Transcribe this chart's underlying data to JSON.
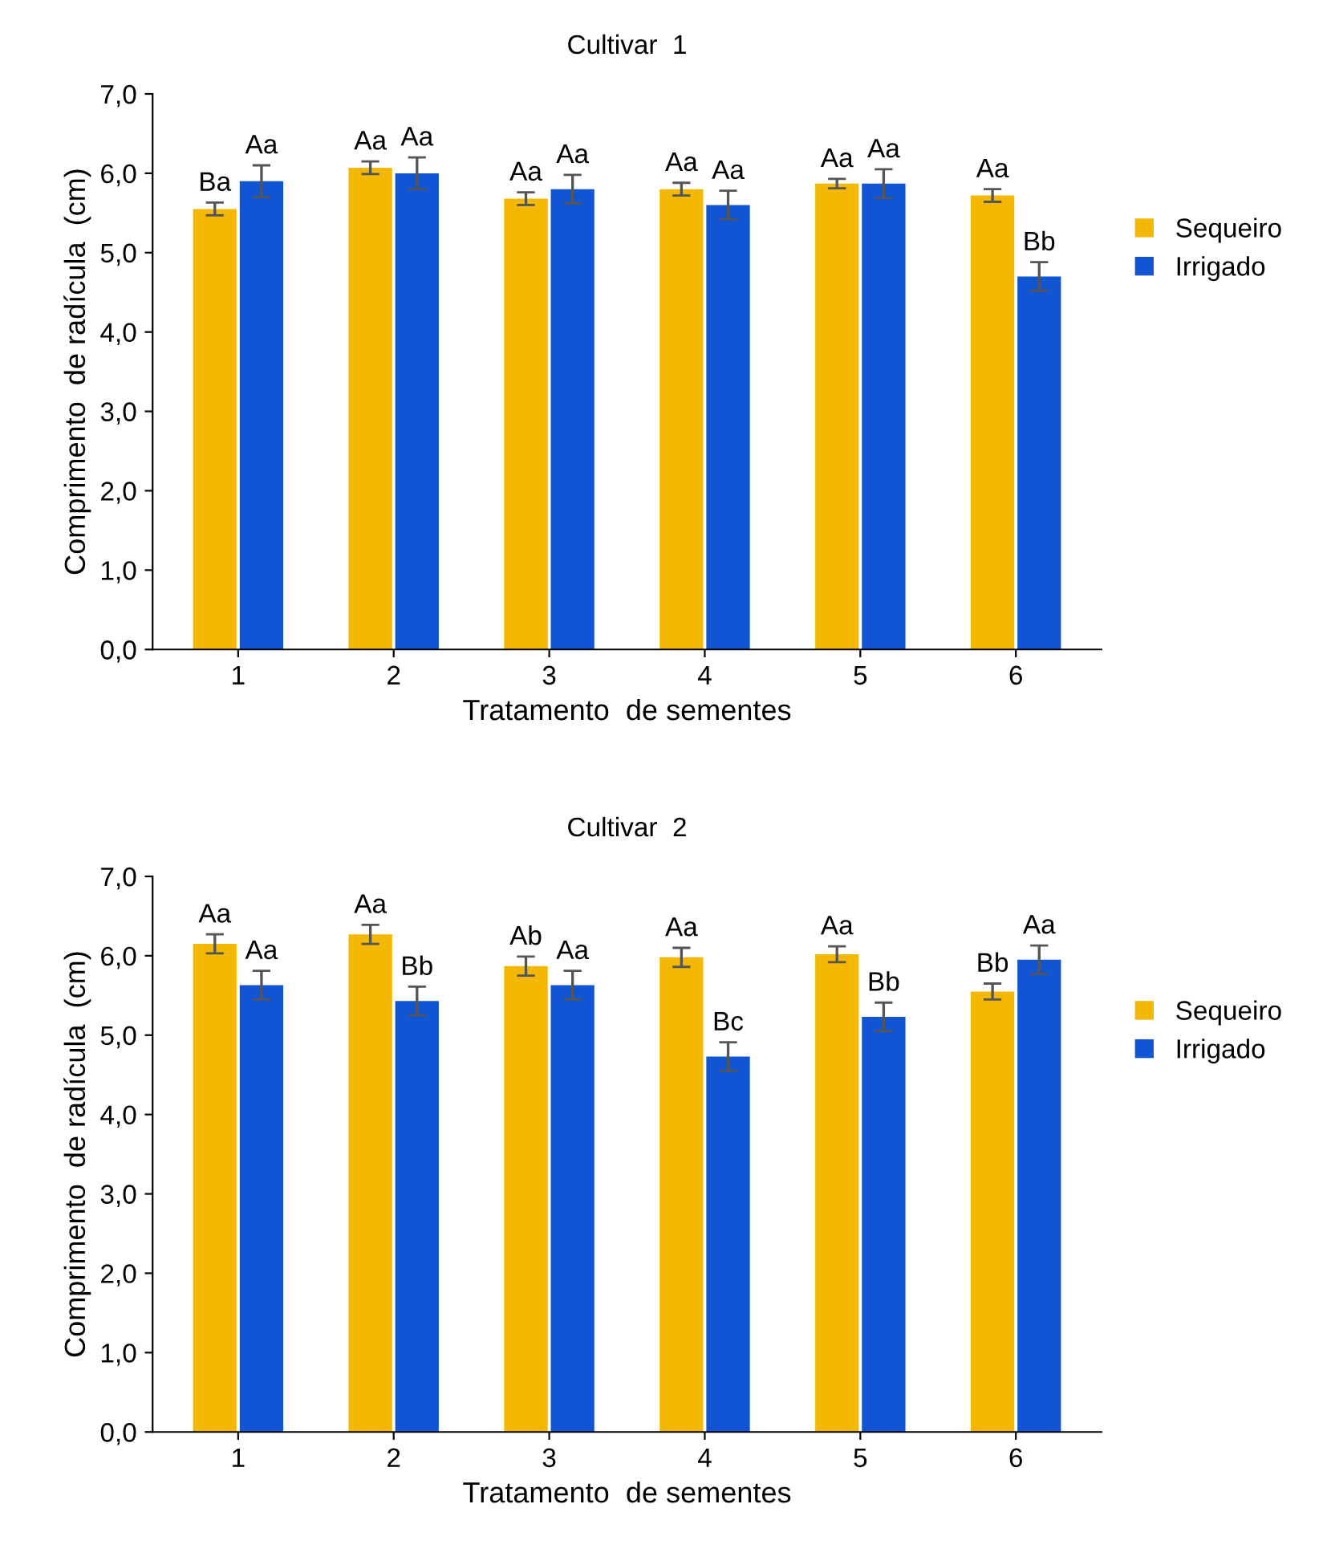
{
  "chart_data": [
    {
      "type": "bar",
      "title": "Cultivar  1",
      "xlabel": "Tratamento  de sementes",
      "ylabel": "Comprimento  de radícula  (cm)",
      "categories": [
        "1",
        "2",
        "3",
        "4",
        "5",
        "6"
      ],
      "series": [
        {
          "name": "Sequeiro",
          "color": "#f5b800",
          "values": [
            5.55,
            6.07,
            5.68,
            5.8,
            5.87,
            5.72
          ],
          "errors": [
            0.08,
            0.08,
            0.08,
            0.08,
            0.06,
            0.08
          ],
          "value_labels": [
            "Ba",
            "Aa",
            "Aa",
            "Aa",
            "Aa",
            "Aa"
          ]
        },
        {
          "name": "Irrigado",
          "color": "#1155d4",
          "values": [
            5.9,
            6.0,
            5.8,
            5.6,
            5.87,
            4.7
          ],
          "errors": [
            0.2,
            0.2,
            0.18,
            0.18,
            0.18,
            0.18
          ],
          "value_labels": [
            "Aa",
            "Aa",
            "Aa",
            "Aa",
            "Aa",
            "Bb"
          ]
        }
      ],
      "ylim": [
        0,
        7
      ],
      "yticks": [
        {
          "value": 0,
          "label": "0,0"
        },
        {
          "value": 1,
          "label": "1,0"
        },
        {
          "value": 2,
          "label": "2,0"
        },
        {
          "value": 3,
          "label": "3,0"
        },
        {
          "value": 4,
          "label": "4,0"
        },
        {
          "value": 5,
          "label": "5,0"
        },
        {
          "value": 6,
          "label": "6,0"
        },
        {
          "value": 7,
          "label": "7,0"
        }
      ],
      "grid": false,
      "legend": "right"
    },
    {
      "type": "bar",
      "title": "Cultivar  2",
      "xlabel": "Tratamento  de sementes",
      "ylabel": "Comprimento  de radícula  (cm)",
      "categories": [
        "1",
        "2",
        "3",
        "4",
        "5",
        "6"
      ],
      "series": [
        {
          "name": "Sequeiro",
          "color": "#f5b800",
          "values": [
            6.15,
            6.27,
            5.87,
            5.98,
            6.02,
            5.55
          ],
          "errors": [
            0.12,
            0.12,
            0.12,
            0.12,
            0.1,
            0.1
          ],
          "value_labels": [
            "Aa",
            "Aa",
            "Ab",
            "Aa",
            "Aa",
            "Bb"
          ]
        },
        {
          "name": "Irrigado",
          "color": "#1155d4",
          "values": [
            5.63,
            5.43,
            5.63,
            4.73,
            5.23,
            5.95
          ],
          "errors": [
            0.18,
            0.18,
            0.18,
            0.18,
            0.18,
            0.18
          ],
          "value_labels": [
            "Aa",
            "Bb",
            "Aa",
            "Bc",
            "Bb",
            "Aa"
          ]
        }
      ],
      "ylim": [
        0,
        7
      ],
      "yticks": [
        {
          "value": 0,
          "label": "0,0"
        },
        {
          "value": 1,
          "label": "1,0"
        },
        {
          "value": 2,
          "label": "2,0"
        },
        {
          "value": 3,
          "label": "3,0"
        },
        {
          "value": 4,
          "label": "4,0"
        },
        {
          "value": 5,
          "label": "5,0"
        },
        {
          "value": 6,
          "label": "6,0"
        },
        {
          "value": 7,
          "label": "7,0"
        }
      ],
      "grid": false,
      "legend": "right"
    }
  ]
}
